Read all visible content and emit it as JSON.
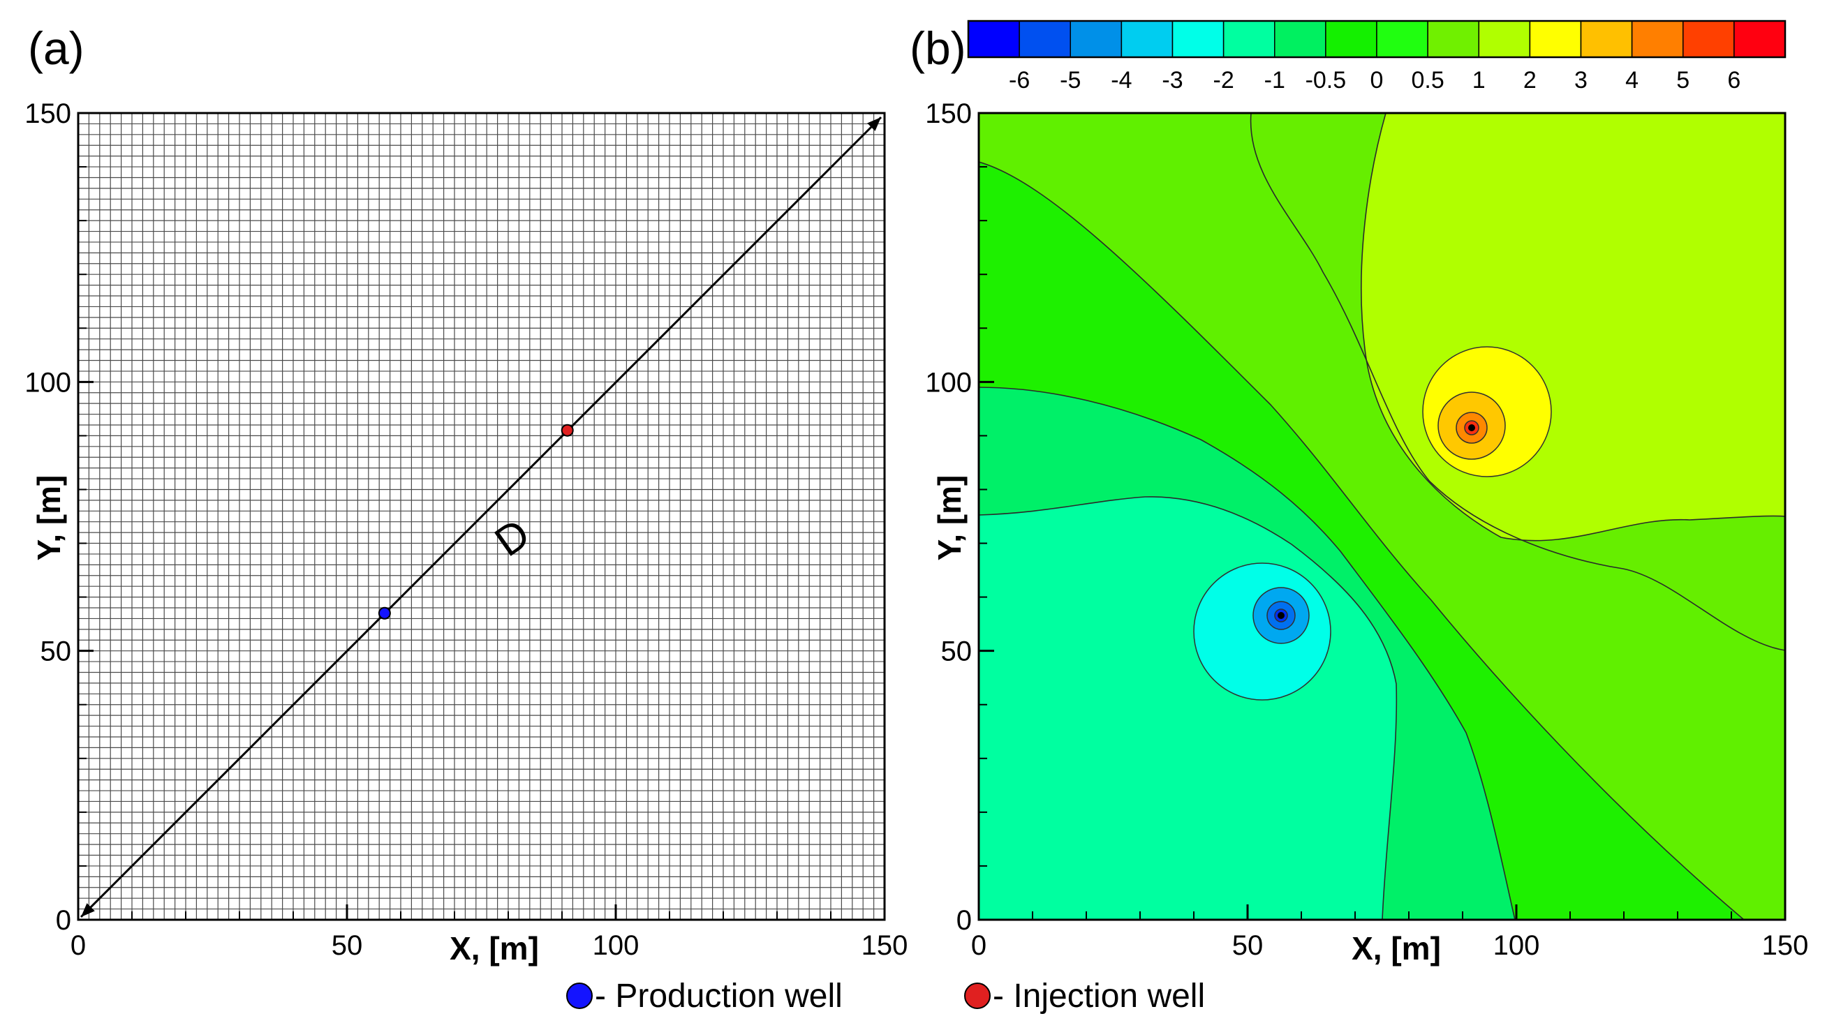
{
  "chart_data": [
    {
      "type": "scatter",
      "panel_label": "(a)",
      "title": "",
      "xlabel": "X, [m]",
      "ylabel": "Y, [m]",
      "xlim": [
        0,
        150
      ],
      "ylim": [
        0,
        150
      ],
      "x_ticks": [
        0,
        50,
        100,
        150
      ],
      "y_ticks": [
        0,
        50,
        100,
        150
      ],
      "grid_spacing_m": 2,
      "grid": true,
      "arrow": {
        "from": [
          0,
          0
        ],
        "to": [
          150,
          150
        ],
        "label": "D"
      },
      "series": [
        {
          "name": "Production well",
          "color": "#1414ff",
          "x": [
            57
          ],
          "y": [
            57
          ]
        },
        {
          "name": "Injection well",
          "color": "#e02020",
          "x": [
            91
          ],
          "y": [
            91
          ]
        }
      ]
    },
    {
      "type": "heatmap",
      "panel_label": "(b)",
      "title": "",
      "xlabel": "X, [m]",
      "ylabel": "Y, [m]",
      "xlim": [
        0,
        150
      ],
      "ylim": [
        0,
        150
      ],
      "x_ticks": [
        0,
        50,
        100,
        150
      ],
      "y_ticks": [
        0,
        50,
        100,
        150
      ],
      "colorbar": {
        "levels": [
          "-6",
          "-5",
          "-4",
          "-3",
          "-2",
          "-1",
          "-0.5",
          "0",
          "0.5",
          "1",
          "2",
          "3",
          "4",
          "5",
          "6"
        ],
        "colors": [
          "#0000ff",
          "#0050f0",
          "#0090e8",
          "#00cdf0",
          "#00ffe8",
          "#00ffa0",
          "#00f060",
          "#14f000",
          "#20ff10",
          "#70f000",
          "#b0ff00",
          "#ffff00",
          "#ffc000",
          "#ff7f00",
          "#ff4000",
          "#ff0010"
        ]
      },
      "wells": [
        {
          "name": "Production well",
          "x": 57,
          "y": 57
        },
        {
          "name": "Injection well",
          "x": 91,
          "y": 91
        }
      ]
    }
  ],
  "legend": [
    {
      "label": "- Production well",
      "color": "#1414ff"
    },
    {
      "label": "- Injection well",
      "color": "#e02020"
    }
  ]
}
